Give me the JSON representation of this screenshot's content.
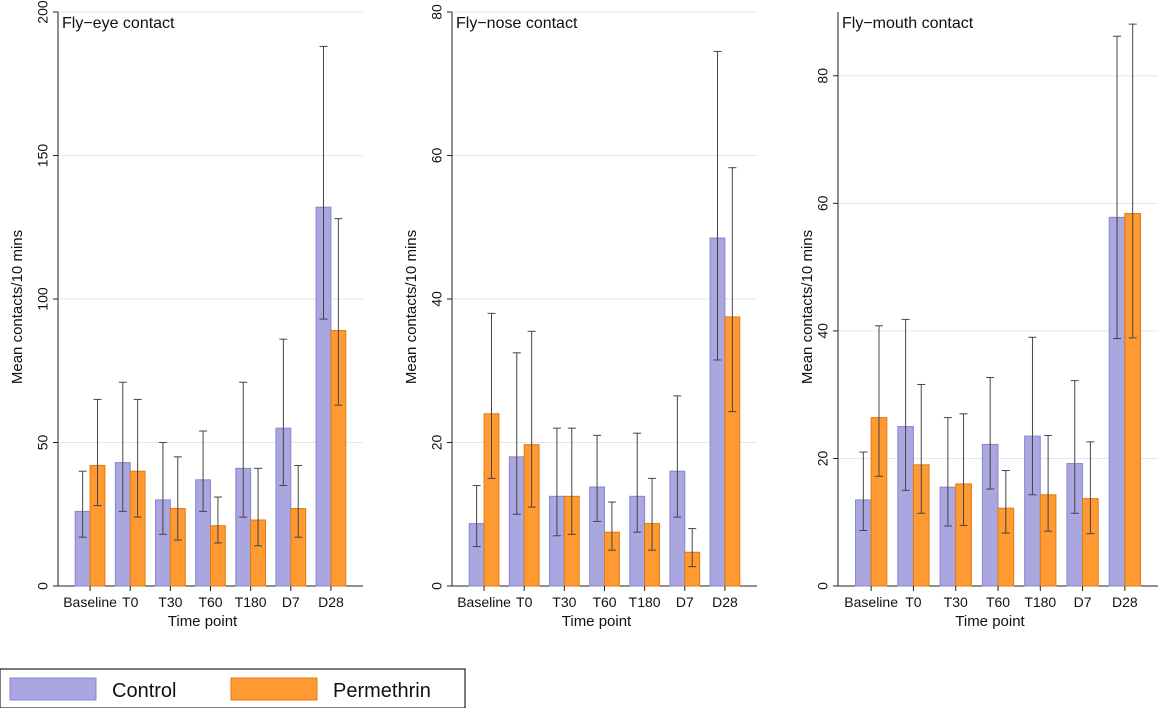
{
  "legend": {
    "items": [
      {
        "name": "Control",
        "color": "#a9a6e0",
        "stroke": "#8a86d0"
      },
      {
        "name": "Permethrin",
        "color": "#ff9a33",
        "stroke": "#e07a10"
      }
    ],
    "placement": "bottom-left"
  },
  "chart_data": [
    {
      "type": "bar",
      "title": "Fly−eye contact",
      "xlabel": "Time point",
      "ylabel": "Mean contacts/10 mins",
      "categories": [
        "Baseline",
        "T0",
        "T30",
        "T60",
        "T180",
        "D7",
        "D28"
      ],
      "ylim": [
        0,
        200
      ],
      "yticks": [
        0,
        50,
        100,
        150,
        200
      ],
      "grid": true,
      "error_bars": true,
      "series": [
        {
          "name": "Control",
          "values": [
            26,
            43,
            30,
            37,
            41,
            55,
            132
          ],
          "lower": [
            17,
            26,
            18,
            26,
            24,
            35,
            93
          ],
          "upper": [
            40,
            71,
            50,
            54,
            71,
            86,
            188
          ]
        },
        {
          "name": "Permethrin",
          "values": [
            42,
            40,
            27,
            21,
            23,
            27,
            89
          ],
          "lower": [
            28,
            24,
            16,
            15,
            14,
            17,
            63
          ],
          "upper": [
            65,
            65,
            45,
            31,
            41,
            42,
            128
          ]
        }
      ]
    },
    {
      "type": "bar",
      "title": "Fly−nose contact",
      "xlabel": "Time point",
      "ylabel": "Mean contacts/10 mins",
      "categories": [
        "Baseline",
        "T0",
        "T30",
        "T60",
        "T180",
        "D7",
        "D28"
      ],
      "ylim": [
        0,
        80
      ],
      "yticks": [
        0,
        20,
        40,
        60,
        80
      ],
      "grid": true,
      "error_bars": true,
      "series": [
        {
          "name": "Control",
          "values": [
            8.7,
            18,
            12.5,
            13.8,
            12.5,
            16,
            48.5
          ],
          "lower": [
            5.5,
            10,
            7,
            9,
            7.5,
            9.6,
            31.5
          ],
          "upper": [
            14,
            32.5,
            22,
            21,
            21.3,
            26.5,
            74.5
          ]
        },
        {
          "name": "Permethrin",
          "values": [
            24,
            19.7,
            12.5,
            7.5,
            8.7,
            4.7,
            37.5
          ],
          "lower": [
            15,
            11,
            7.2,
            5,
            5,
            2.7,
            24.3
          ],
          "upper": [
            38,
            35.5,
            22,
            11.7,
            15,
            8,
            58.3
          ]
        }
      ]
    },
    {
      "type": "bar",
      "title": "Fly−mouth contact",
      "xlabel": "Time point",
      "ylabel": "Mean contacts/10 mins",
      "categories": [
        "Baseline",
        "T0",
        "T30",
        "T60",
        "T180",
        "D7",
        "D28"
      ],
      "ylim": [
        0,
        90
      ],
      "yticks": [
        0,
        20,
        40,
        60,
        80
      ],
      "grid": true,
      "error_bars": true,
      "series": [
        {
          "name": "Control",
          "values": [
            13.5,
            25,
            15.5,
            22.2,
            23.5,
            19.2,
            57.8
          ],
          "lower": [
            8.7,
            15,
            9.4,
            15.2,
            14.3,
            11.4,
            38.8
          ],
          "upper": [
            21,
            41.8,
            26.4,
            32.7,
            39,
            32.2,
            86.2
          ]
        },
        {
          "name": "Permethrin",
          "values": [
            26.4,
            19,
            16,
            12.2,
            14.3,
            13.7,
            58.4
          ],
          "lower": [
            17.2,
            11.4,
            9.5,
            8.3,
            8.6,
            8.2,
            38.9
          ],
          "upper": [
            40.8,
            31.6,
            27,
            18.1,
            23.6,
            22.6,
            88.1
          ]
        }
      ]
    }
  ]
}
